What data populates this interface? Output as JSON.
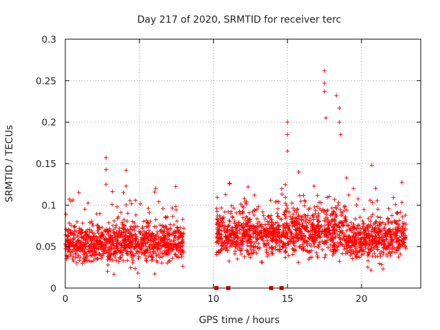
{
  "chart_data": {
    "type": "scatter",
    "title": "Day 217 of 2020, SRMTID for receiver terc",
    "xlabel": "GPS time / hours",
    "ylabel": "SRMTID / TECUs",
    "xlim": [
      0,
      24
    ],
    "ylim": [
      0,
      0.3
    ],
    "x_ticks": [
      0,
      5,
      10,
      15,
      20
    ],
    "x_tick_labels": [
      "0",
      "5",
      "10",
      "15",
      "20"
    ],
    "y_ticks": [
      0,
      0.05,
      0.1,
      0.15,
      0.2,
      0.25,
      0.3
    ],
    "y_tick_labels": [
      "0",
      "0.05",
      "0.1",
      "0.15",
      "0.2",
      "0.25",
      "0.3"
    ],
    "grid": true,
    "marker": "plus",
    "color": "#ff0000",
    "series": [
      {
        "name": "SRMTID",
        "segments": [
          {
            "start": 0.0,
            "end": 8.0,
            "base": 0.055,
            "spread": 0.022
          },
          {
            "start": 10.2,
            "end": 14.8,
            "base": 0.065,
            "spread": 0.022
          },
          {
            "start": 14.8,
            "end": 19.0,
            "base": 0.07,
            "spread": 0.028
          },
          {
            "start": 19.0,
            "end": 23.0,
            "base": 0.06,
            "spread": 0.022
          }
        ],
        "highlights": [
          {
            "x": 2.75,
            "y": 0.157
          },
          {
            "x": 2.75,
            "y": 0.143
          },
          {
            "x": 2.75,
            "y": 0.125
          },
          {
            "x": 4.1,
            "y": 0.142
          },
          {
            "x": 4.1,
            "y": 0.123
          },
          {
            "x": 6.1,
            "y": 0.12
          },
          {
            "x": 15.0,
            "y": 0.2
          },
          {
            "x": 15.0,
            "y": 0.185
          },
          {
            "x": 15.0,
            "y": 0.165
          },
          {
            "x": 17.5,
            "y": 0.262
          },
          {
            "x": 17.5,
            "y": 0.247
          },
          {
            "x": 17.5,
            "y": 0.237
          },
          {
            "x": 17.6,
            "y": 0.205
          },
          {
            "x": 18.3,
            "y": 0.232
          },
          {
            "x": 18.5,
            "y": 0.217
          },
          {
            "x": 18.5,
            "y": 0.2
          },
          {
            "x": 18.6,
            "y": 0.185
          },
          {
            "x": 20.7,
            "y": 0.148
          }
        ],
        "zero_points": [
          10.2,
          11.0,
          13.9,
          14.6
        ]
      }
    ]
  }
}
